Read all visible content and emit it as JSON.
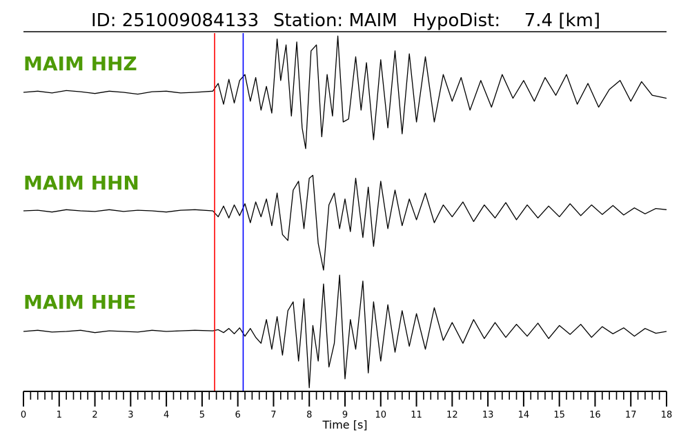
{
  "header": {
    "id_text": "ID: 251009084133",
    "station_text": "Station: MAIM",
    "hypodist_label": "HypoDist:",
    "hypodist_value": "7.4 [km]"
  },
  "colors": {
    "label": "#4e9a06",
    "trace": "#000000",
    "p_pick": "#ff0000",
    "s_pick": "#0000ff",
    "axis": "#000000"
  },
  "chart_data": {
    "type": "line",
    "title": "",
    "xlabel": "Time [s]",
    "ylabel": "",
    "xlim": [
      0,
      18
    ],
    "grid": false,
    "legend": "none",
    "x_ticks": [
      "0",
      "1",
      "2",
      "3",
      "4",
      "5",
      "6",
      "7",
      "8",
      "9",
      "10",
      "11",
      "12",
      "13",
      "14",
      "15",
      "16",
      "17",
      "18"
    ],
    "minor_tick_step": 0.2,
    "picks": [
      {
        "name": "P",
        "time": 5.35,
        "color": "#ff0000"
      },
      {
        "name": "S",
        "time": 6.15,
        "color": "#0000ff"
      }
    ],
    "series": [
      {
        "name": "MAIM HHZ",
        "x": [
          0,
          0.4,
          0.8,
          1.2,
          1.6,
          2.0,
          2.4,
          2.8,
          3.2,
          3.6,
          4.0,
          4.4,
          4.8,
          5.3,
          5.45,
          5.6,
          5.75,
          5.9,
          6.05,
          6.2,
          6.35,
          6.5,
          6.65,
          6.8,
          6.95,
          7.1,
          7.2,
          7.35,
          7.5,
          7.65,
          7.8,
          7.9,
          8.05,
          8.2,
          8.35,
          8.5,
          8.65,
          8.8,
          8.95,
          9.1,
          9.3,
          9.45,
          9.6,
          9.8,
          10.0,
          10.2,
          10.4,
          10.6,
          10.8,
          11.0,
          11.25,
          11.5,
          11.75,
          12.0,
          12.25,
          12.5,
          12.8,
          13.1,
          13.4,
          13.7,
          14.0,
          14.3,
          14.6,
          14.9,
          15.2,
          15.5,
          15.8,
          16.1,
          16.4,
          16.7,
          17.0,
          17.3,
          17.6,
          18.0
        ],
        "y": [
          0,
          0.02,
          -0.01,
          0.03,
          0.01,
          -0.02,
          0.02,
          0.0,
          -0.03,
          0.01,
          0.02,
          -0.01,
          0.0,
          0.02,
          0.15,
          -0.2,
          0.22,
          -0.18,
          0.2,
          0.3,
          -0.15,
          0.25,
          -0.3,
          0.1,
          -0.35,
          0.9,
          0.2,
          0.8,
          -0.4,
          0.85,
          -0.6,
          -0.95,
          0.7,
          0.8,
          -0.75,
          0.3,
          -0.4,
          0.95,
          -0.5,
          -0.45,
          0.6,
          -0.3,
          0.5,
          -0.8,
          0.55,
          -0.6,
          0.7,
          -0.7,
          0.65,
          -0.5,
          0.6,
          -0.5,
          0.3,
          -0.15,
          0.25,
          -0.3,
          0.2,
          -0.25,
          0.3,
          -0.1,
          0.2,
          -0.15,
          0.25,
          -0.05,
          0.3,
          -0.2,
          0.15,
          -0.25,
          0.05,
          0.2,
          -0.15,
          0.18,
          -0.05,
          -0.1
        ]
      },
      {
        "name": "MAIM HHN",
        "x": [
          0,
          0.4,
          0.8,
          1.2,
          1.6,
          2.0,
          2.4,
          2.8,
          3.2,
          3.6,
          4.0,
          4.4,
          4.8,
          5.3,
          5.45,
          5.6,
          5.75,
          5.9,
          6.05,
          6.2,
          6.35,
          6.5,
          6.65,
          6.8,
          6.95,
          7.1,
          7.25,
          7.4,
          7.55,
          7.7,
          7.85,
          8.0,
          8.1,
          8.25,
          8.4,
          8.55,
          8.7,
          8.85,
          9.0,
          9.15,
          9.3,
          9.5,
          9.65,
          9.8,
          10.0,
          10.2,
          10.4,
          10.6,
          10.8,
          11.0,
          11.25,
          11.5,
          11.75,
          12.0,
          12.3,
          12.6,
          12.9,
          13.2,
          13.5,
          13.8,
          14.1,
          14.4,
          14.7,
          15.0,
          15.3,
          15.6,
          15.9,
          16.2,
          16.5,
          16.8,
          17.1,
          17.4,
          17.7,
          18.0
        ],
        "y": [
          0,
          0.01,
          -0.02,
          0.02,
          0.0,
          -0.01,
          0.02,
          -0.01,
          0.01,
          0.0,
          -0.02,
          0.01,
          0.02,
          0.0,
          -0.1,
          0.08,
          -0.12,
          0.1,
          -0.08,
          0.12,
          -0.2,
          0.15,
          -0.1,
          0.2,
          -0.25,
          0.3,
          -0.4,
          -0.5,
          0.35,
          0.5,
          -0.3,
          0.55,
          0.6,
          -0.55,
          -1.0,
          0.1,
          0.3,
          -0.3,
          0.2,
          -0.35,
          0.55,
          -0.45,
          0.4,
          -0.6,
          0.5,
          -0.3,
          0.35,
          -0.25,
          0.2,
          -0.15,
          0.3,
          -0.2,
          0.1,
          -0.1,
          0.15,
          -0.18,
          0.1,
          -0.12,
          0.14,
          -0.15,
          0.1,
          -0.12,
          0.08,
          -0.1,
          0.12,
          -0.08,
          0.1,
          -0.06,
          0.09,
          -0.07,
          0.05,
          -0.05,
          0.04,
          0.02
        ]
      },
      {
        "name": "MAIM HHE",
        "x": [
          0,
          0.4,
          0.8,
          1.2,
          1.6,
          2.0,
          2.4,
          2.8,
          3.2,
          3.6,
          4.0,
          4.4,
          4.8,
          5.3,
          5.45,
          5.6,
          5.75,
          5.9,
          6.05,
          6.2,
          6.35,
          6.5,
          6.65,
          6.8,
          6.95,
          7.1,
          7.25,
          7.4,
          7.55,
          7.7,
          7.85,
          8.0,
          8.1,
          8.25,
          8.4,
          8.55,
          8.7,
          8.85,
          9.0,
          9.15,
          9.3,
          9.5,
          9.65,
          9.8,
          10.0,
          10.2,
          10.4,
          10.6,
          10.8,
          11.0,
          11.25,
          11.5,
          11.75,
          12.0,
          12.3,
          12.6,
          12.9,
          13.2,
          13.5,
          13.8,
          14.1,
          14.4,
          14.7,
          15.0,
          15.3,
          15.6,
          15.9,
          16.2,
          16.5,
          16.8,
          17.1,
          17.4,
          17.7,
          18.0
        ],
        "y": [
          0,
          0.02,
          -0.01,
          0.0,
          0.02,
          -0.02,
          0.01,
          0.0,
          -0.01,
          0.02,
          0.0,
          0.01,
          0.02,
          0.01,
          0.03,
          -0.02,
          0.05,
          -0.04,
          0.06,
          -0.08,
          0.05,
          -0.1,
          -0.2,
          0.2,
          -0.3,
          0.25,
          -0.4,
          0.35,
          0.5,
          -0.5,
          0.55,
          -0.95,
          0.1,
          -0.5,
          0.8,
          -0.6,
          -0.2,
          0.95,
          -0.8,
          0.2,
          -0.3,
          0.85,
          -0.7,
          0.5,
          -0.5,
          0.45,
          -0.35,
          0.35,
          -0.25,
          0.3,
          -0.3,
          0.4,
          -0.15,
          0.15,
          -0.2,
          0.2,
          -0.12,
          0.15,
          -0.1,
          0.12,
          -0.08,
          0.14,
          -0.12,
          0.1,
          -0.05,
          0.12,
          -0.1,
          0.08,
          -0.04,
          0.06,
          -0.08,
          0.05,
          -0.03,
          0.0
        ]
      }
    ]
  }
}
